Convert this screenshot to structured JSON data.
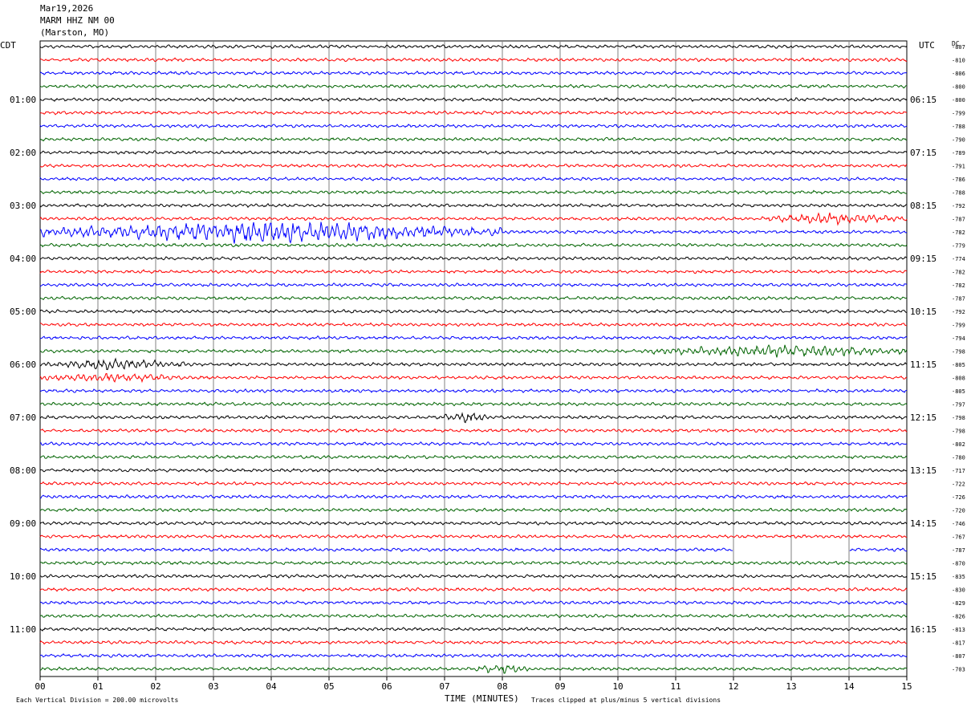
{
  "header": {
    "date": "Mar19,2026",
    "station": "MARM HHZ NM 00",
    "location": "(Marston, MO)"
  },
  "left_tz": "CDT",
  "right_tz": "UTC",
  "dc_label": "DC",
  "xaxis": {
    "title": "TIME (MINUTES)",
    "ticks": [
      "00",
      "01",
      "02",
      "03",
      "04",
      "05",
      "06",
      "07",
      "08",
      "09",
      "10",
      "11",
      "12",
      "13",
      "14",
      "15"
    ]
  },
  "footer": {
    "scale": "Each Vertical Division =  200.00 microvolts",
    "clip": "Traces clipped at plus/minus 5 vertical divisions"
  },
  "colors": {
    "trace_cycle": [
      "#000000",
      "#ff0000",
      "#0000ff",
      "#006400"
    ],
    "grid": "#808080"
  },
  "chart_data": {
    "type": "line",
    "title": "MARM HHZ NM 00",
    "xlabel": "TIME (MINUTES)",
    "xlim": [
      0,
      15
    ],
    "traces_per_hour": 4,
    "rows": [
      {
        "left": "",
        "right": "",
        "dc": "-807"
      },
      {
        "left": "",
        "right": "",
        "dc": "-810"
      },
      {
        "left": "",
        "right": "",
        "dc": "-806"
      },
      {
        "left": "",
        "right": "",
        "dc": "-800"
      },
      {
        "left": "01:00",
        "right": "06:15",
        "dc": "-800"
      },
      {
        "left": "",
        "right": "",
        "dc": "-799"
      },
      {
        "left": "",
        "right": "",
        "dc": "-788"
      },
      {
        "left": "",
        "right": "",
        "dc": "-790"
      },
      {
        "left": "02:00",
        "right": "07:15",
        "dc": "-789"
      },
      {
        "left": "",
        "right": "",
        "dc": "-791"
      },
      {
        "left": "",
        "right": "",
        "dc": "-786"
      },
      {
        "left": "",
        "right": "",
        "dc": "-788"
      },
      {
        "left": "03:00",
        "right": "08:15",
        "dc": "-792"
      },
      {
        "left": "",
        "right": "",
        "dc": "-787"
      },
      {
        "left": "",
        "right": "",
        "dc": "-782"
      },
      {
        "left": "",
        "right": "",
        "dc": "-779"
      },
      {
        "left": "04:00",
        "right": "09:15",
        "dc": "-774"
      },
      {
        "left": "",
        "right": "",
        "dc": "-782"
      },
      {
        "left": "",
        "right": "",
        "dc": "-782"
      },
      {
        "left": "",
        "right": "",
        "dc": "-787"
      },
      {
        "left": "05:00",
        "right": "10:15",
        "dc": "-792"
      },
      {
        "left": "",
        "right": "",
        "dc": "-799"
      },
      {
        "left": "",
        "right": "",
        "dc": "-794"
      },
      {
        "left": "",
        "right": "",
        "dc": "-798"
      },
      {
        "left": "06:00",
        "right": "11:15",
        "dc": "-805"
      },
      {
        "left": "",
        "right": "",
        "dc": "-808"
      },
      {
        "left": "",
        "right": "",
        "dc": "-805"
      },
      {
        "left": "",
        "right": "",
        "dc": "-797"
      },
      {
        "left": "07:00",
        "right": "12:15",
        "dc": "-798"
      },
      {
        "left": "",
        "right": "",
        "dc": "-798"
      },
      {
        "left": "",
        "right": "",
        "dc": "-802"
      },
      {
        "left": "",
        "right": "",
        "dc": "-780"
      },
      {
        "left": "08:00",
        "right": "13:15",
        "dc": "-717"
      },
      {
        "left": "",
        "right": "",
        "dc": "-722"
      },
      {
        "left": "",
        "right": "",
        "dc": "-726"
      },
      {
        "left": "",
        "right": "",
        "dc": "-720"
      },
      {
        "left": "09:00",
        "right": "14:15",
        "dc": "-746"
      },
      {
        "left": "",
        "right": "",
        "dc": "-767"
      },
      {
        "left": "",
        "right": "",
        "dc": "-787"
      },
      {
        "left": "",
        "right": "",
        "dc": "-870"
      },
      {
        "left": "10:00",
        "right": "15:15",
        "dc": "-835"
      },
      {
        "left": "",
        "right": "",
        "dc": "-830"
      },
      {
        "left": "",
        "right": "",
        "dc": "-829"
      },
      {
        "left": "",
        "right": "",
        "dc": "-826"
      },
      {
        "left": "11:00",
        "right": "16:15",
        "dc": "-813"
      },
      {
        "left": "",
        "right": "",
        "dc": "-817"
      },
      {
        "left": "",
        "right": "",
        "dc": "-807"
      },
      {
        "left": "",
        "right": "",
        "dc": "-703"
      }
    ],
    "bursts": [
      {
        "row": 13,
        "x0": 12.5,
        "x1": 15,
        "amp": 1.9
      },
      {
        "row": 14,
        "x0": 0,
        "x1": 8,
        "amp": 4.5
      },
      {
        "row": 23,
        "x0": 10.5,
        "x1": 15,
        "amp": 2.3
      },
      {
        "row": 24,
        "x0": 0,
        "x1": 2.5,
        "amp": 1.8
      },
      {
        "row": 25,
        "x0": 0,
        "x1": 2.5,
        "amp": 1.4
      },
      {
        "row": 28,
        "x0": 7,
        "x1": 7.8,
        "amp": 2.2
      },
      {
        "row": 47,
        "x0": 7.5,
        "x1": 8.5,
        "amp": 1.5
      }
    ],
    "gaps": [
      {
        "row": 38,
        "x0": 12,
        "x1": 14
      }
    ]
  }
}
